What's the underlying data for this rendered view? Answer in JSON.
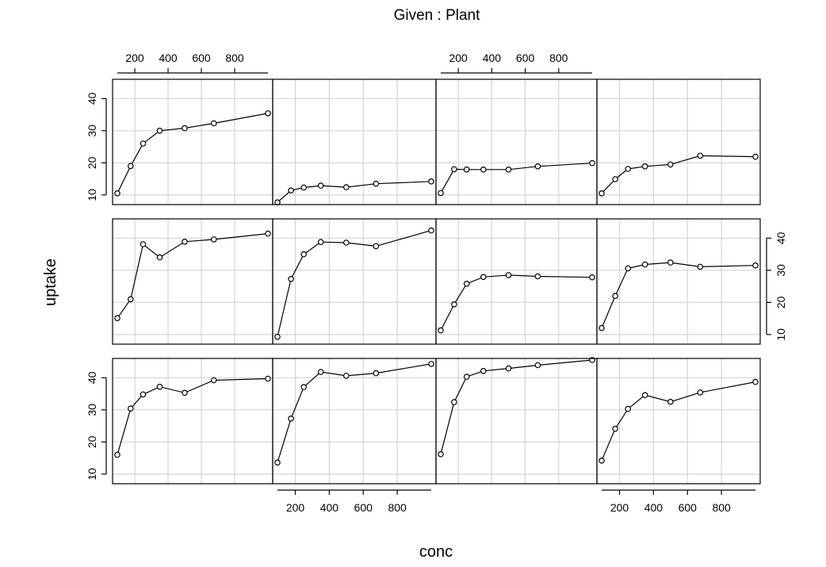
{
  "chart_data": {
    "type": "scatter",
    "style": "coplot-points-lines",
    "title": "Given : Plant",
    "xlabel": "conc",
    "ylabel": "uptake",
    "xlim": [
      95,
      1000
    ],
    "ylim": [
      7,
      46
    ],
    "x_ticks": [
      200,
      400,
      600,
      800
    ],
    "y_ticks": [
      10,
      20,
      30,
      40
    ],
    "grid": true,
    "layout": {
      "rows": 3,
      "cols": 4
    },
    "x": [
      95,
      175,
      250,
      350,
      500,
      675,
      1000
    ],
    "panels": [
      {
        "row": 1,
        "col": 1,
        "values": [
          10.5,
          19.0,
          26.0,
          30.0,
          30.8,
          32.3,
          35.4
        ]
      },
      {
        "row": 1,
        "col": 2,
        "values": [
          7.7,
          11.4,
          12.3,
          12.9,
          12.4,
          13.5,
          14.2
        ]
      },
      {
        "row": 1,
        "col": 3,
        "values": [
          10.6,
          18.0,
          17.9,
          17.9,
          17.9,
          18.9,
          19.9
        ]
      },
      {
        "row": 1,
        "col": 4,
        "values": [
          10.5,
          14.9,
          18.1,
          18.9,
          19.5,
          22.2,
          21.9
        ]
      },
      {
        "row": 2,
        "col": 1,
        "values": [
          15.1,
          21.0,
          38.1,
          34.0,
          38.9,
          39.6,
          41.4
        ]
      },
      {
        "row": 2,
        "col": 2,
        "values": [
          9.3,
          27.3,
          35.0,
          38.8,
          38.6,
          37.5,
          42.4
        ]
      },
      {
        "row": 2,
        "col": 3,
        "values": [
          11.3,
          19.4,
          25.8,
          27.9,
          28.5,
          28.1,
          27.8
        ]
      },
      {
        "row": 2,
        "col": 4,
        "values": [
          12.0,
          22.0,
          30.6,
          31.8,
          32.4,
          31.1,
          31.5
        ]
      },
      {
        "row": 3,
        "col": 1,
        "values": [
          16.0,
          30.4,
          34.8,
          37.2,
          35.3,
          39.2,
          39.7
        ]
      },
      {
        "row": 3,
        "col": 2,
        "values": [
          13.6,
          27.3,
          37.1,
          41.8,
          40.6,
          41.4,
          44.3
        ]
      },
      {
        "row": 3,
        "col": 3,
        "values": [
          16.2,
          32.4,
          40.3,
          42.1,
          42.9,
          43.9,
          45.5
        ]
      },
      {
        "row": 3,
        "col": 4,
        "values": [
          14.2,
          24.1,
          30.3,
          34.6,
          32.5,
          35.4,
          38.7
        ]
      }
    ]
  }
}
